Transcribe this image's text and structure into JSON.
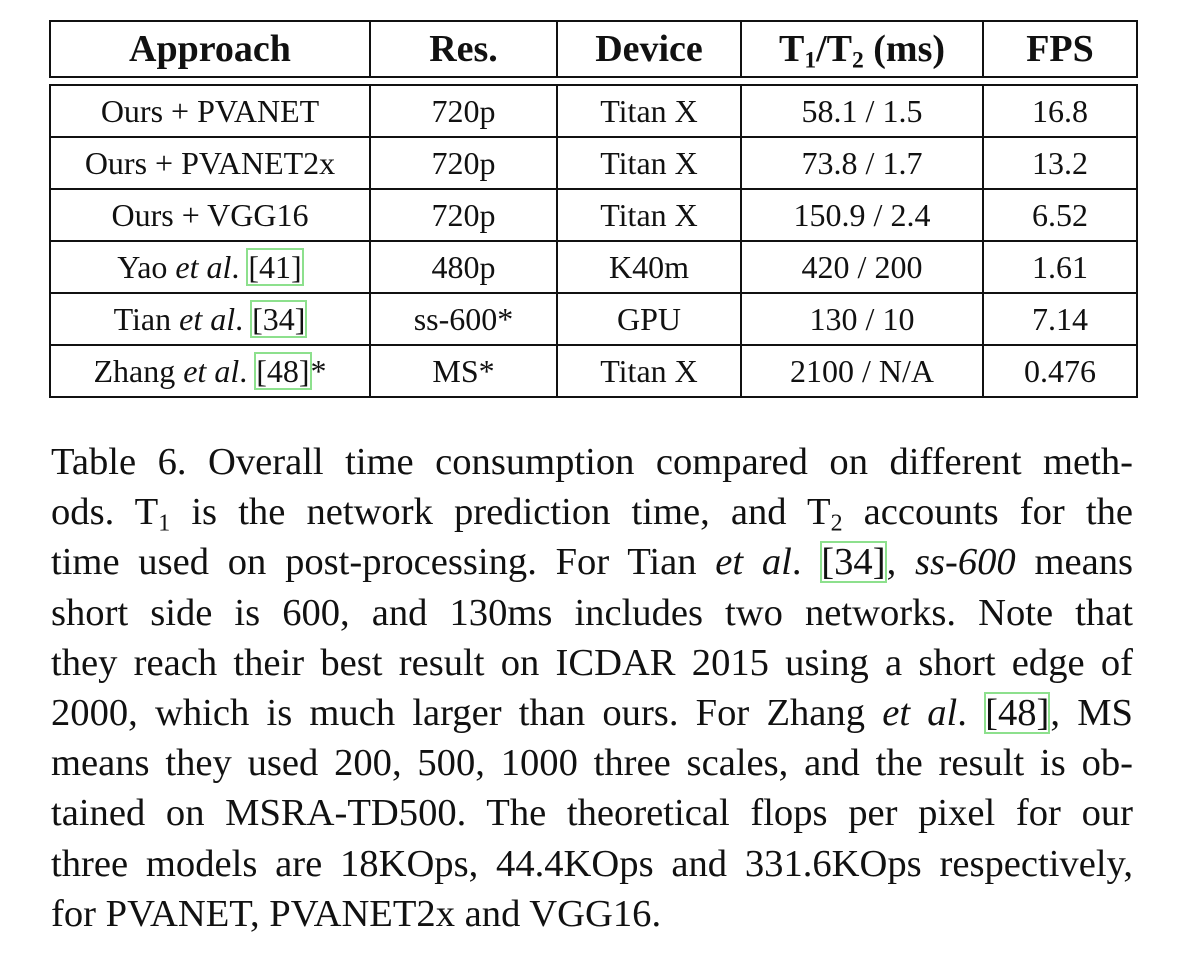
{
  "table": {
    "headers": {
      "approach": "Approach",
      "res": "Res.",
      "device": "Device",
      "time_t1": "T",
      "time_sub1": "1",
      "time_slash": "/T",
      "time_sub2": "2",
      "time_unit": " (ms)",
      "fps": "FPS"
    },
    "rows": [
      {
        "approach_pre": "Ours + PVANET",
        "approach_it": "",
        "approach_sep": "",
        "ref": "",
        "approach_post": "",
        "res": "720p",
        "device": "Titan X",
        "time": "58.1 / 1.5",
        "fps": "16.8"
      },
      {
        "approach_pre": "Ours + PVANET2x",
        "approach_it": "",
        "approach_sep": "",
        "ref": "",
        "approach_post": "",
        "res": "720p",
        "device": "Titan X",
        "time": "73.8 / 1.7",
        "fps": "13.2"
      },
      {
        "approach_pre": "Ours + VGG16",
        "approach_it": "",
        "approach_sep": "",
        "ref": "",
        "approach_post": "",
        "res": "720p",
        "device": "Titan X",
        "time": "150.9 / 2.4",
        "fps": "6.52"
      },
      {
        "approach_pre": "Yao ",
        "approach_it": "et al",
        "approach_sep": ". ",
        "ref": "[41]",
        "approach_post": "",
        "res": "480p",
        "device": "K40m",
        "time": "420 / 200",
        "fps": "1.61"
      },
      {
        "approach_pre": "Tian ",
        "approach_it": "et al",
        "approach_sep": ". ",
        "ref": "[34]",
        "approach_post": "",
        "res": "ss-600*",
        "device": "GPU",
        "time": "130 / 10",
        "fps": "7.14"
      },
      {
        "approach_pre": "Zhang ",
        "approach_it": "et al",
        "approach_sep": ". ",
        "ref": "[48]",
        "approach_post": "*",
        "res": "MS*",
        "device": "Titan X",
        "time": "2100 / N/A",
        "fps": "0.476"
      }
    ]
  },
  "caption": {
    "l1": "Table 6. Overall time consumption compared on different meth-",
    "l2_a": "ods.  T",
    "l2_sub1": "1",
    "l2_b": " is the network prediction time, and T",
    "l2_sub2": "2",
    "l2_c": " accounts for the",
    "l3_a": "time used on post-processing. For Tian ",
    "l3_it": "et al",
    "l3_b": ". ",
    "l3_ref": "[34]",
    "l3_c": ", ",
    "l3_it2": "ss-600",
    "l3_d": " means",
    "l4": "short side is 600, and 130ms includes two networks.  Note that",
    "l5": "they reach their best result on ICDAR 2015 using a short edge of",
    "l6_a": "2000, which is much larger than ours. For Zhang ",
    "l6_it": "et al",
    "l6_b": ". ",
    "l6_ref": "[48]",
    "l6_c": ", MS",
    "l7": "means they used 200, 500, 1000 three scales, and the result is ob-",
    "l8": "tained on MSRA-TD500.  The theoretical flops per pixel for our",
    "l9": "three models are 18KOps, 44.4KOps and 331.6KOps respectively,",
    "l10": "for PVANET, PVANET2x and VGG16."
  },
  "colors": {
    "text": "#111111",
    "rule": "#111111",
    "citation_box": "#8de08d"
  }
}
